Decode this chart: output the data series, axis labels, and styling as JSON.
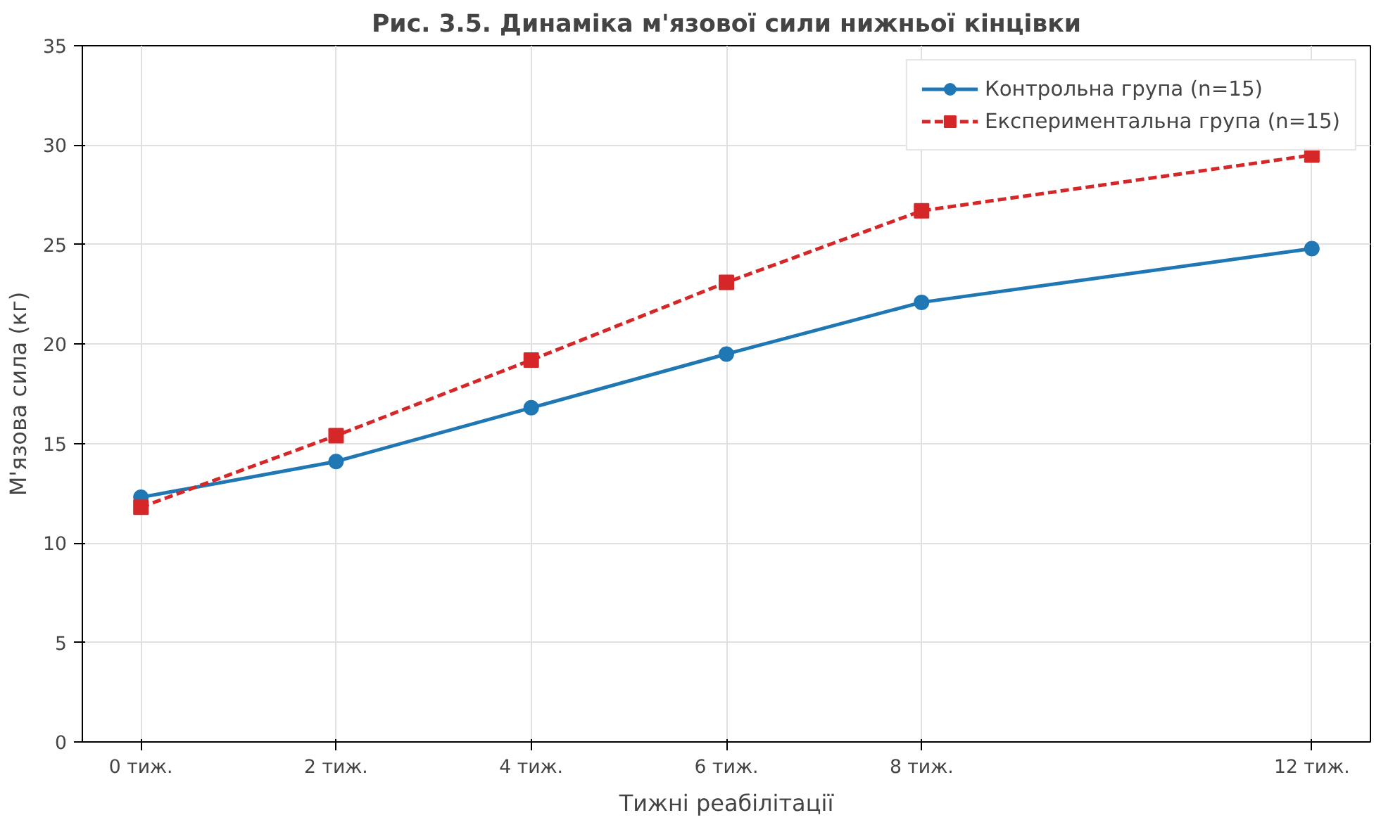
{
  "chart_data": {
    "type": "line",
    "title": "Рис. 3.5. Динаміка м'язової сили нижньої кінцівки",
    "xlabel": "Тижні реабілітації",
    "ylabel": "М'язова сила (кг)",
    "x": [
      0,
      2,
      4,
      6,
      8,
      12
    ],
    "series": [
      {
        "name": "Контрольна група (n=15)",
        "color": "#1f77b4",
        "values": [
          12.3,
          14.1,
          16.8,
          19.5,
          22.1,
          24.8
        ],
        "marker": "circle",
        "line_style": "solid"
      },
      {
        "name": "Експериментальна група (n=15)",
        "color": "#d62728",
        "values": [
          11.8,
          15.4,
          19.2,
          23.1,
          26.7,
          29.5
        ],
        "marker": "square",
        "line_style": "dashed"
      }
    ],
    "xlim": [
      -0.6,
      12.6
    ],
    "ylim": [
      0,
      35
    ],
    "xticks": [
      {
        "value": 0,
        "label": "0 тиж."
      },
      {
        "value": 2,
        "label": "2 тиж."
      },
      {
        "value": 4,
        "label": "4 тиж."
      },
      {
        "value": 6,
        "label": "6 тиж."
      },
      {
        "value": 8,
        "label": "8 тиж."
      },
      {
        "value": 12,
        "label": "12 тиж."
      }
    ],
    "yticks": [
      0,
      5,
      10,
      15,
      20,
      25,
      30,
      35
    ],
    "grid": true,
    "legend": "top right"
  }
}
